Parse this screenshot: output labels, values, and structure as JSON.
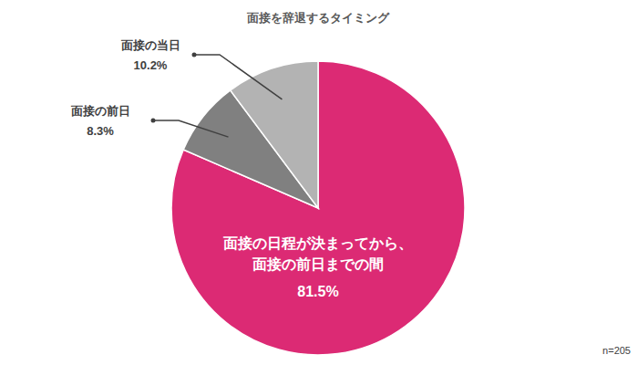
{
  "chart_data": {
    "type": "pie",
    "title": "面接を辞退するタイミング",
    "categories": [
      "面接の日程が決まってから、\n面接の前日までの間",
      "面接の前日",
      "面接の当日"
    ],
    "values": [
      81.5,
      8.3,
      10.2
    ],
    "value_labels": [
      "81.5%",
      "8.3%",
      "10.2%"
    ],
    "colors": [
      "#dc2a74",
      "#808080",
      "#b3b3b3"
    ],
    "data_labels": true,
    "annotations": [
      "n=205"
    ]
  }
}
